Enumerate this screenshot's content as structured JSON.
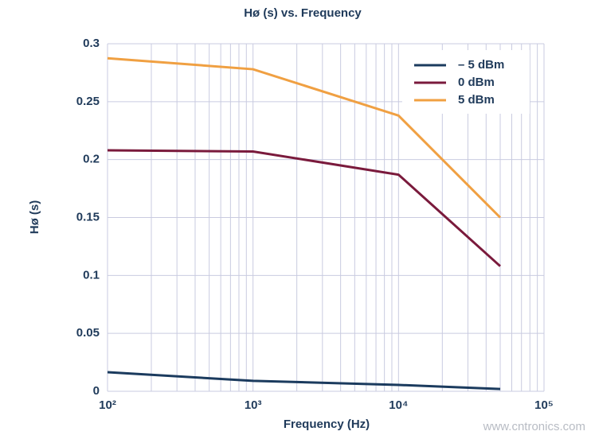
{
  "chart_data": {
    "type": "line",
    "title": "Hø (s) vs. Frequency",
    "xlabel": "Frequency (Hz)",
    "ylabel": "Hø (s)",
    "x": [
      100,
      1000,
      10000,
      50000
    ],
    "series": [
      {
        "name": "– 5 dBm",
        "color": "#1b3b5e",
        "values": [
          0.0165,
          0.009,
          0.0055,
          0.002
        ]
      },
      {
        "name": "0 dBm",
        "color": "#7a1a3c",
        "values": [
          0.208,
          0.207,
          0.187,
          0.108
        ]
      },
      {
        "name": "5 dBm",
        "color": "#f0a042",
        "values": [
          0.2875,
          0.278,
          0.238,
          0.15
        ]
      }
    ],
    "xscale": "log",
    "xlim": [
      100,
      100000
    ],
    "xticks": [
      {
        "value": 100,
        "label": "10²"
      },
      {
        "value": 1000,
        "label": "10³"
      },
      {
        "value": 10000,
        "label": "10⁴"
      },
      {
        "value": 100000,
        "label": "10⁵"
      }
    ],
    "xminorticks": [
      200,
      300,
      400,
      500,
      600,
      700,
      800,
      900,
      2000,
      3000,
      4000,
      5000,
      6000,
      7000,
      8000,
      9000,
      20000,
      30000,
      40000,
      50000,
      60000,
      70000,
      80000,
      90000
    ],
    "ylim": [
      0,
      0.3
    ],
    "yticks": [
      0,
      0.05,
      0.1,
      0.15,
      0.2,
      0.25,
      0.3
    ],
    "grid": true,
    "legend": "upper right",
    "watermark": "www.cntronics.com"
  }
}
